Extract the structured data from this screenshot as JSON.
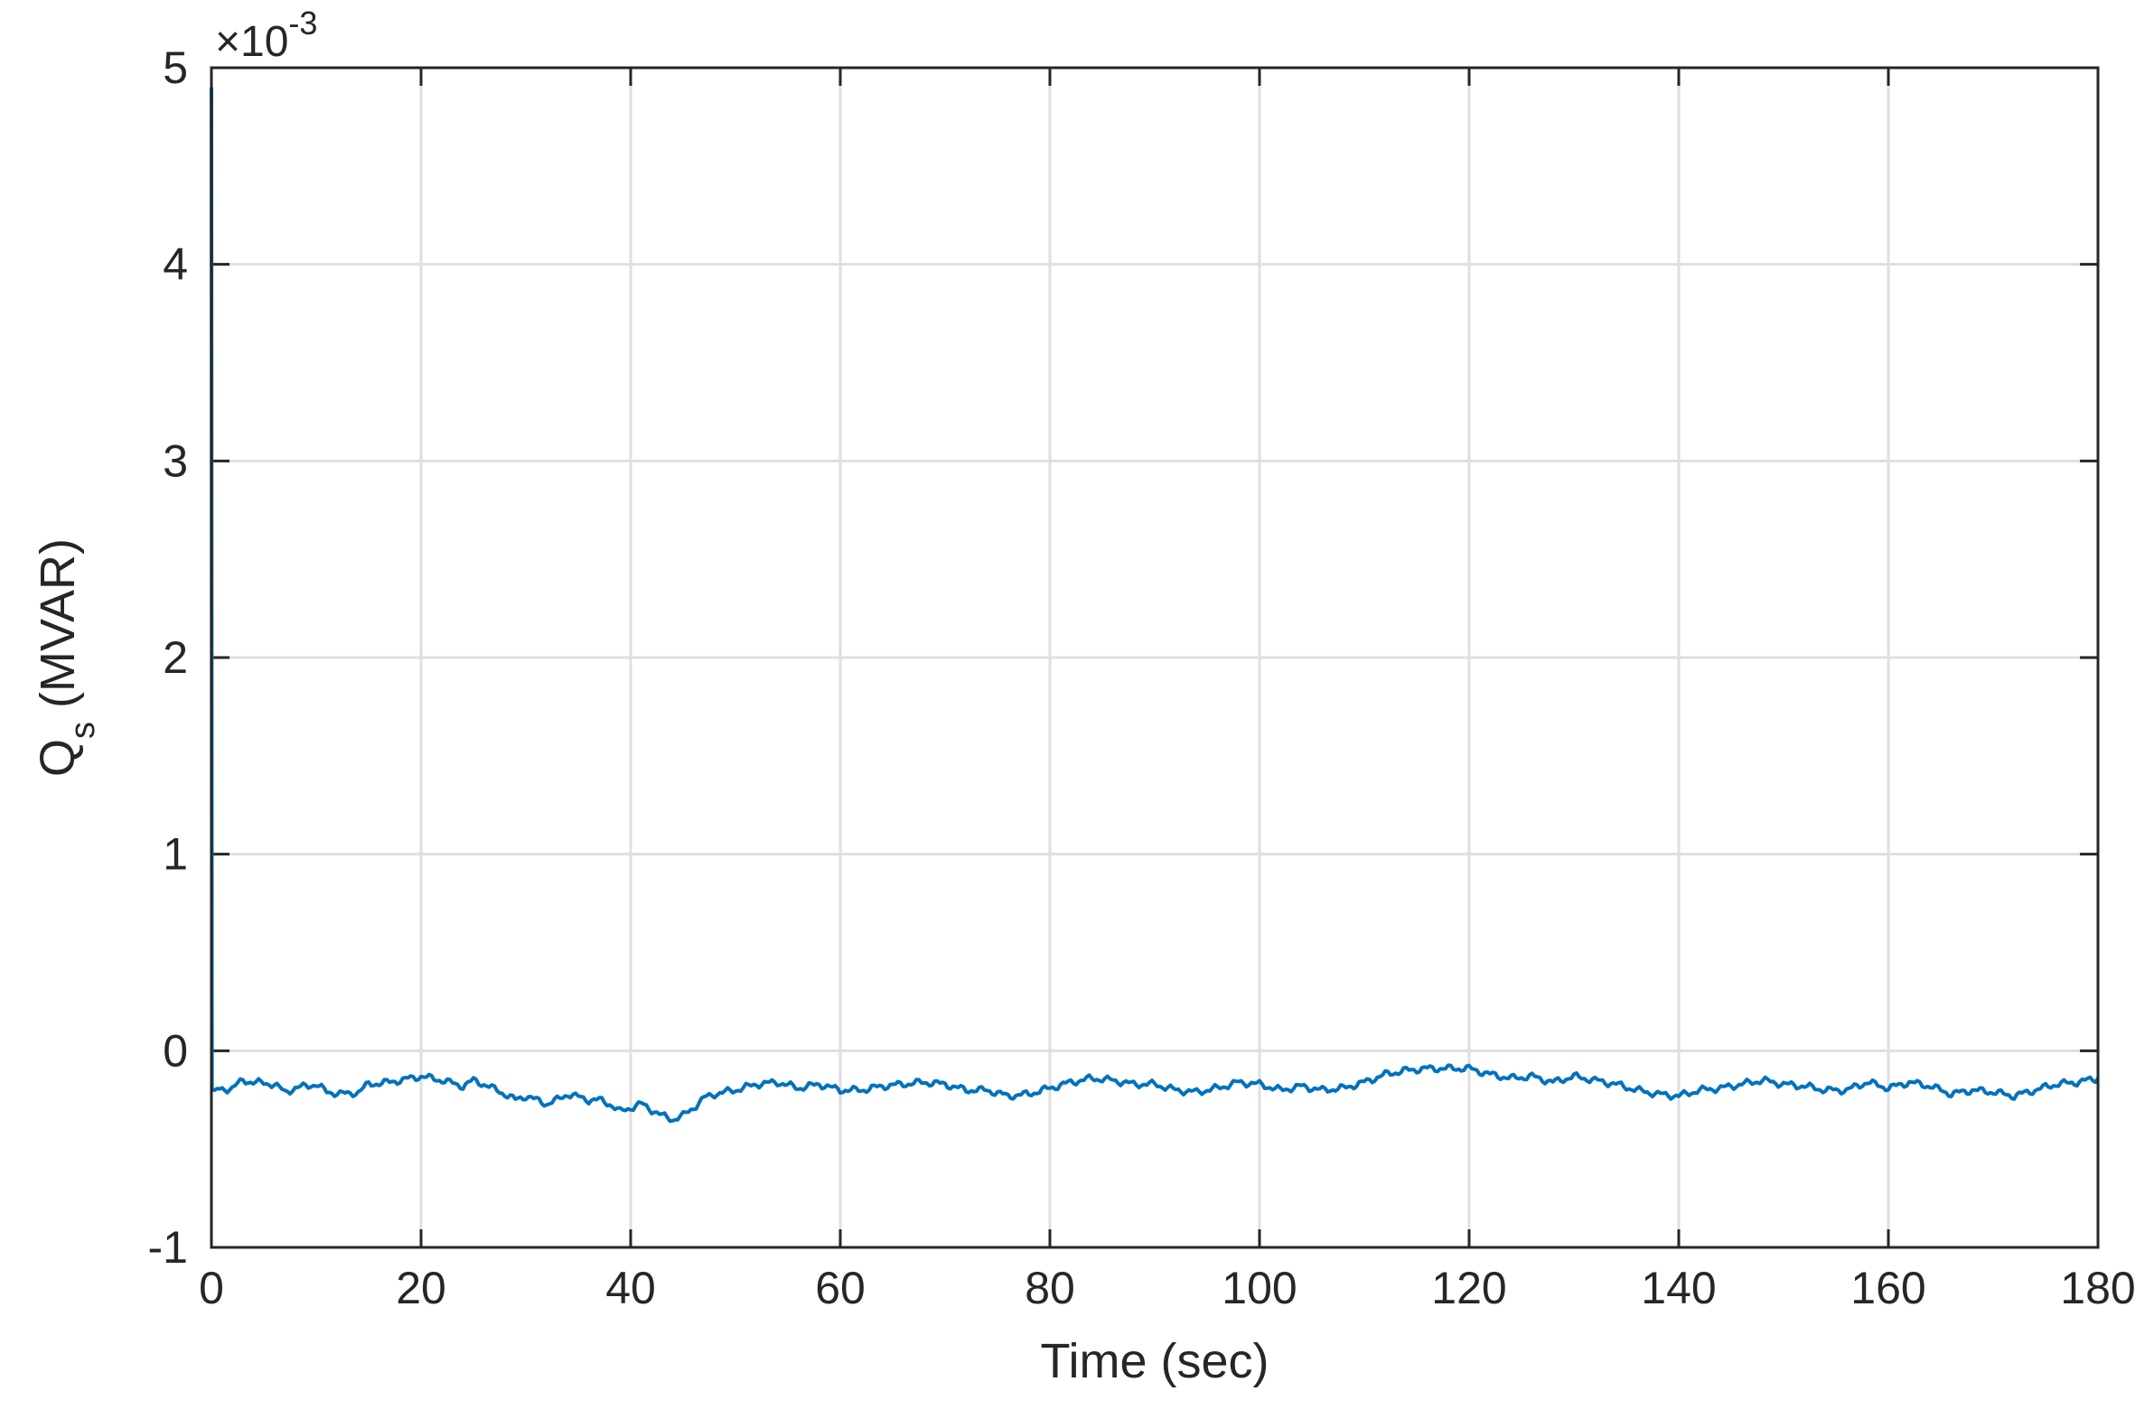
{
  "chart_data": {
    "type": "line",
    "xlabel": "Time (sec)",
    "ylabel_main": "Q",
    "ylabel_sub": "s",
    "ylabel_suffix": " (MVAR)",
    "exponent_prefix": "×10",
    "exponent_power": "-3",
    "xlim": [
      0,
      180
    ],
    "ylim": [
      -1,
      5
    ],
    "xticks": [
      0,
      20,
      40,
      60,
      80,
      100,
      120,
      140,
      160,
      180
    ],
    "yticks": [
      -1,
      0,
      1,
      2,
      3,
      4,
      5
    ],
    "xtick_labels": [
      "0",
      "20",
      "40",
      "60",
      "80",
      "100",
      "120",
      "140",
      "160",
      "180"
    ],
    "ytick_labels": [
      "-1",
      "0",
      "1",
      "2",
      "3",
      "4",
      "5"
    ],
    "grid": true,
    "line_color": "#0072BD",
    "series": [
      {
        "x": [
          0,
          0.05,
          0.3,
          2,
          3,
          4,
          6,
          7,
          8,
          10,
          11,
          13,
          14,
          15,
          17,
          18,
          20,
          21,
          22,
          24,
          25,
          26,
          28,
          29,
          30,
          32,
          33,
          34,
          36,
          37,
          38,
          39,
          40,
          41,
          42,
          43,
          44,
          45,
          46,
          47,
          48,
          50,
          52,
          54,
          56,
          58,
          60,
          62,
          64,
          66,
          68,
          70,
          72,
          74,
          76,
          78,
          80,
          82,
          84,
          86,
          88,
          90,
          92,
          94,
          96,
          98,
          100,
          102,
          104,
          106,
          108,
          110,
          112,
          114,
          116,
          118,
          120,
          122,
          124,
          126,
          128,
          130,
          132,
          134,
          136,
          138,
          140,
          142,
          144,
          146,
          148,
          150,
          152,
          154,
          156,
          158,
          160,
          162,
          164,
          166,
          168,
          170,
          172,
          174,
          176,
          178,
          180
        ],
        "y": [
          4.9,
          -0.2,
          -0.2,
          -0.19,
          -0.15,
          -0.16,
          -0.17,
          -0.21,
          -0.19,
          -0.17,
          -0.21,
          -0.22,
          -0.21,
          -0.17,
          -0.16,
          -0.15,
          -0.13,
          -0.14,
          -0.15,
          -0.18,
          -0.15,
          -0.17,
          -0.22,
          -0.25,
          -0.23,
          -0.27,
          -0.25,
          -0.22,
          -0.25,
          -0.25,
          -0.27,
          -0.31,
          -0.29,
          -0.27,
          -0.3,
          -0.33,
          -0.35,
          -0.33,
          -0.29,
          -0.24,
          -0.22,
          -0.2,
          -0.17,
          -0.16,
          -0.19,
          -0.17,
          -0.2,
          -0.2,
          -0.18,
          -0.17,
          -0.16,
          -0.17,
          -0.2,
          -0.2,
          -0.23,
          -0.22,
          -0.19,
          -0.16,
          -0.14,
          -0.15,
          -0.17,
          -0.17,
          -0.2,
          -0.21,
          -0.19,
          -0.16,
          -0.17,
          -0.2,
          -0.18,
          -0.2,
          -0.19,
          -0.16,
          -0.12,
          -0.1,
          -0.09,
          -0.09,
          -0.09,
          -0.12,
          -0.14,
          -0.13,
          -0.16,
          -0.13,
          -0.15,
          -0.17,
          -0.2,
          -0.22,
          -0.23,
          -0.2,
          -0.19,
          -0.17,
          -0.15,
          -0.17,
          -0.18,
          -0.2,
          -0.2,
          -0.16,
          -0.19,
          -0.16,
          -0.18,
          -0.22,
          -0.2,
          -0.21,
          -0.23,
          -0.2,
          -0.17,
          -0.16,
          -0.14
        ]
      }
    ]
  }
}
